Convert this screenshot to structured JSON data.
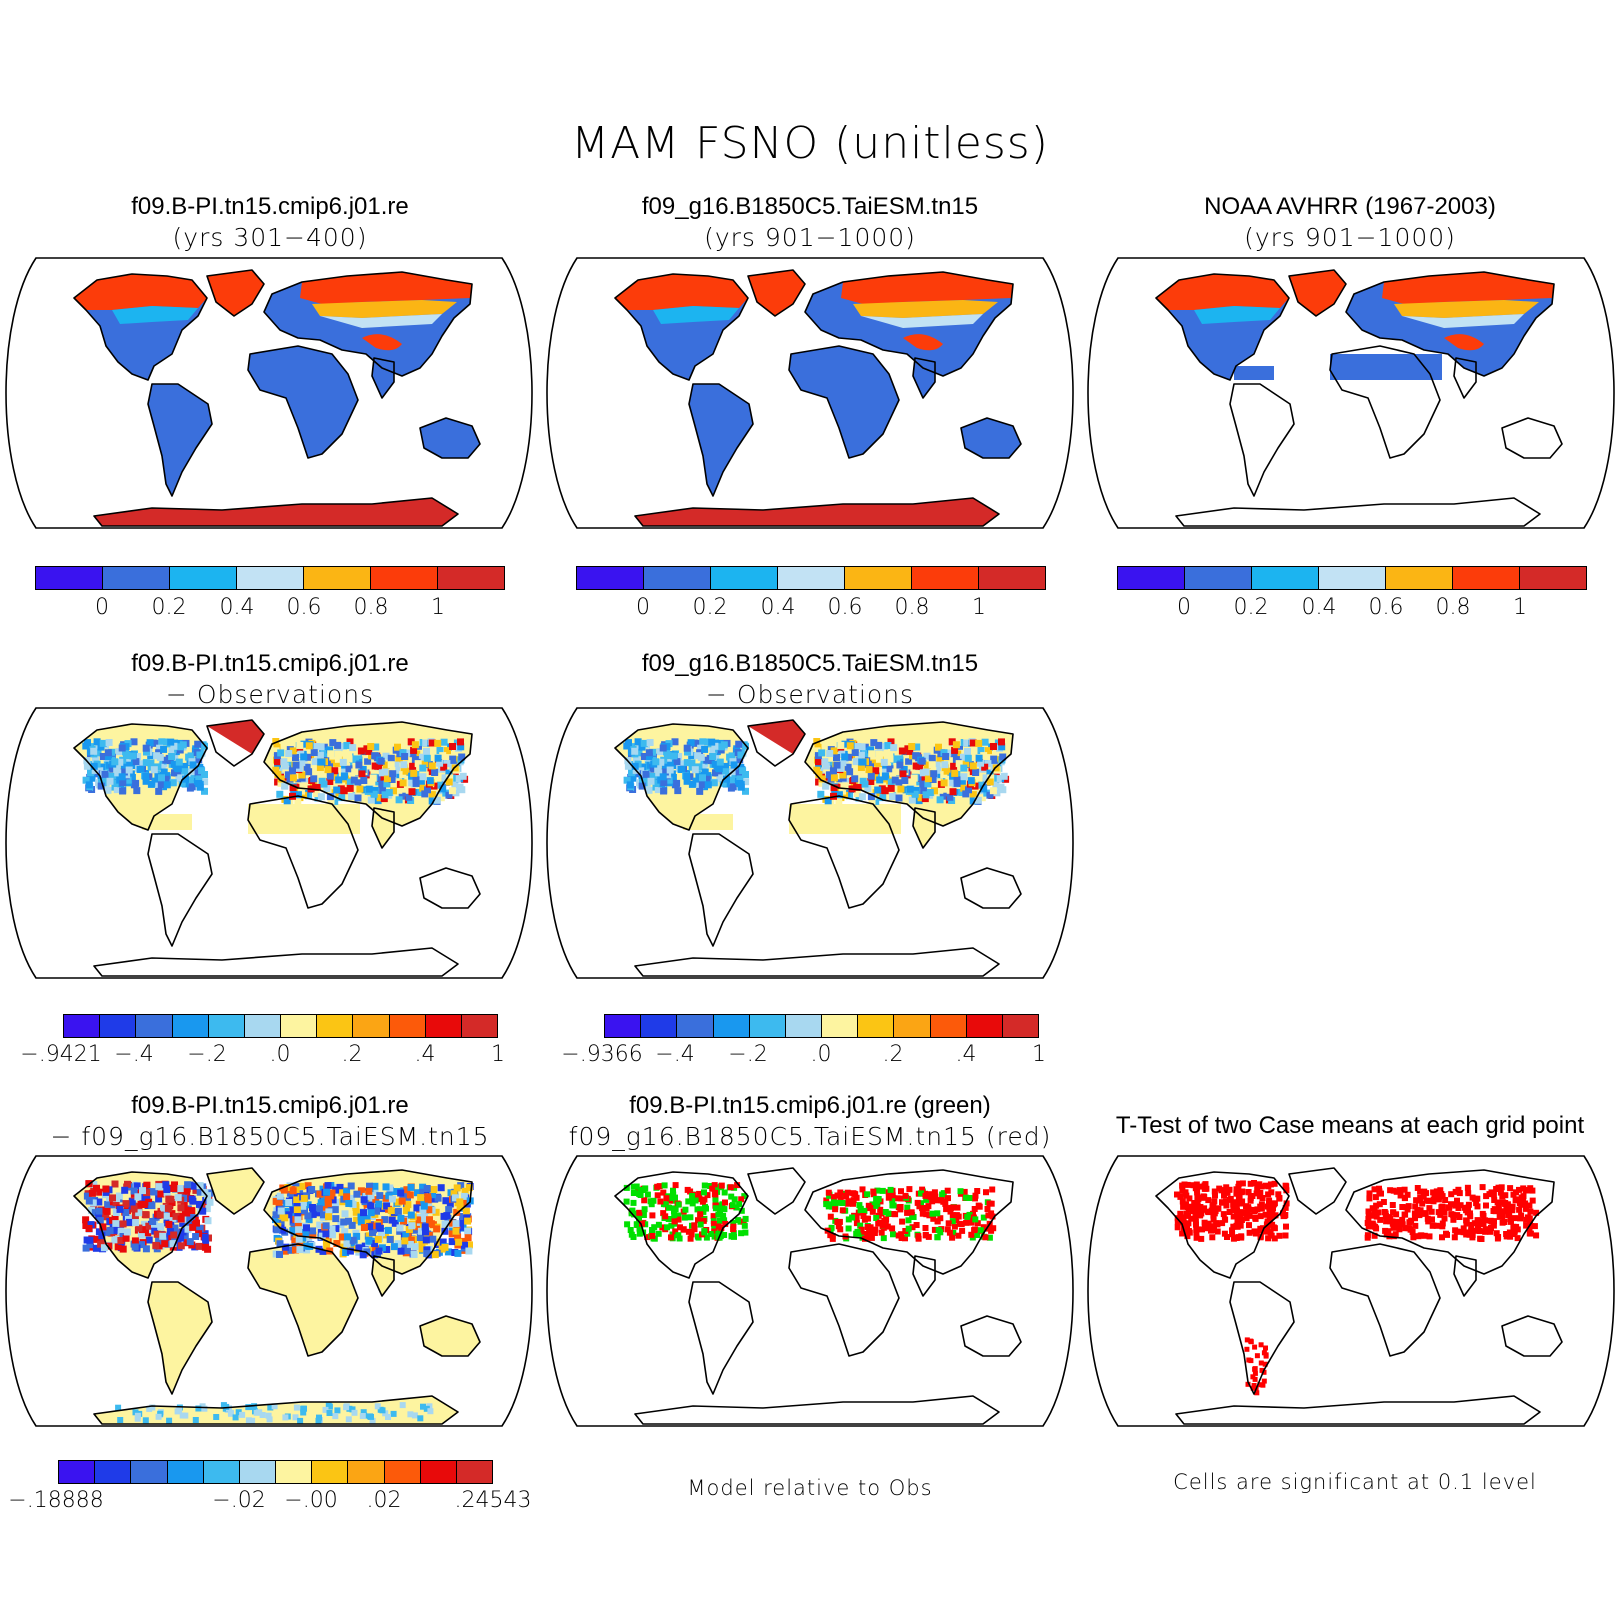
{
  "title": "MAM FSNO (unitless)",
  "colors": {
    "abs": [
      "#3a13f0",
      "#3a6fdc",
      "#1cb4f0",
      "#c2e2f4",
      "#fbb514",
      "#fc3c0a",
      "#d42a28"
    ],
    "diff": [
      "#3a13f0",
      "#1f3be8",
      "#3a6fdc",
      "#1998ef",
      "#3dbaef",
      "#a8d8f0",
      "#fdf4a0",
      "#fbc514",
      "#fba514",
      "#fc5a0a",
      "#e80a0a",
      "#d42a28"
    ],
    "land_fill": "#3a6fdc",
    "snow_high": "#fc3c0a",
    "antarctica": "#d42a28",
    "diff_land": "#fdf4a0",
    "sig_red": "#ff0000",
    "sig_green": "#00e000"
  },
  "panels": {
    "p1": {
      "title1": "f09.B-PI.tn15.cmip6.j01.re",
      "title2": "(yrs 301−400)"
    },
    "p2": {
      "title1": "f09_g16.B1850C5.TaiESM.tn15",
      "title2": "(yrs 901−1000)"
    },
    "p3": {
      "title1": "NOAA AVHRR (1967-2003)",
      "title2": "(yrs 901−1000)"
    },
    "p4": {
      "title1": "f09.B-PI.tn15.cmip6.j01.re",
      "title2": "− Observations"
    },
    "p5": {
      "title1": "f09_g16.B1850C5.TaiESM.tn15",
      "title2": "− Observations"
    },
    "p7": {
      "title1": "f09.B-PI.tn15.cmip6.j01.re",
      "title2": "− f09_g16.B1850C5.TaiESM.tn15"
    },
    "p8": {
      "title1": "f09.B-PI.tn15.cmip6.j01.re (green)",
      "title2": "f09_g16.B1850C5.TaiESM.tn15 (red)"
    },
    "p9": {
      "title1": "T-Test of two Case means at each grid point",
      "title2": ""
    }
  },
  "colorbars": {
    "abs_ticks": [
      "0",
      "0.2",
      "0.4",
      "0.6",
      "0.8",
      "1"
    ],
    "diff1_ticks": [
      "−.9421",
      "−.4",
      "−.2",
      ".0",
      ".2",
      ".4",
      "1"
    ],
    "diff2_ticks": [
      "−.9366",
      "−.4",
      "−.2",
      ".0",
      ".2",
      ".4",
      "1"
    ],
    "diff3_ticks": [
      "−.18888",
      "−.02",
      "−.00",
      ".02",
      ".24543"
    ]
  },
  "notes": {
    "model_relative": "Model relative to Obs",
    "significance": "Cells are significant at 0.1 level"
  }
}
